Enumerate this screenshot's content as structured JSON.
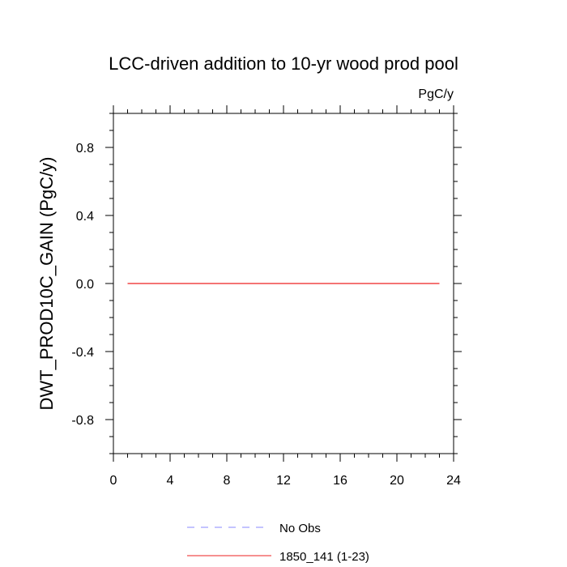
{
  "chart_data": {
    "type": "line",
    "title": "LCC-driven addition to 10-yr wood prod pool",
    "units": "PgC/y",
    "ylabel": "DWT_PROD10C_GAIN  (PgC/y)",
    "xlabel": "",
    "xlim": [
      0,
      24
    ],
    "ylim": [
      -1,
      1
    ],
    "x_ticks": [
      0,
      4,
      8,
      12,
      16,
      20,
      24
    ],
    "x_tick_labels": [
      "0",
      "4",
      "8",
      "12",
      "16",
      "20",
      "24"
    ],
    "y_ticks": [
      -0.8,
      -0.4,
      0.0,
      0.4,
      0.8
    ],
    "y_tick_labels": [
      "-0.8",
      "-0.4",
      "0.0",
      "0.4",
      "0.8"
    ],
    "grid": false,
    "legend_position": "bottom",
    "series": [
      {
        "name": "No Obs",
        "color": "#8888ff",
        "dash": "dashed",
        "x": [],
        "y": []
      },
      {
        "name": "1850_141 (1-23)",
        "color": "#ee2222",
        "dash": "solid",
        "x": [
          1,
          2,
          3,
          4,
          5,
          6,
          7,
          8,
          9,
          10,
          11,
          12,
          13,
          14,
          15,
          16,
          17,
          18,
          19,
          20,
          21,
          22,
          23
        ],
        "y": [
          0,
          0,
          0,
          0,
          0,
          0,
          0,
          0,
          0,
          0,
          0,
          0,
          0,
          0,
          0,
          0,
          0,
          0,
          0,
          0,
          0,
          0,
          0
        ]
      }
    ]
  }
}
